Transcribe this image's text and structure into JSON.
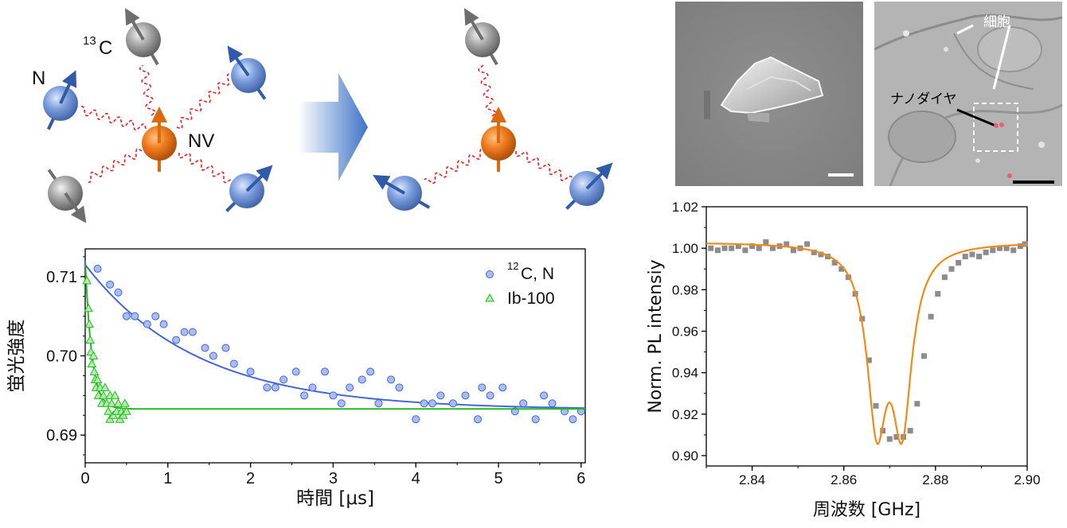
{
  "schematic": {
    "label_n": "N",
    "label_c13_sup": "13",
    "label_c13": "C",
    "label_nv": "NV",
    "colors": {
      "nv_spin": "#f07c1e",
      "nitrogen_spin": "#6f95d9",
      "carbon13_spin": "#9a9a9a",
      "coupling_line": "#e8202a",
      "arrow": "#3f74c8"
    },
    "icons": [
      "nv-spin-icon",
      "nitrogen-spin-icon",
      "carbon13-spin-icon",
      "transition-arrow-icon"
    ]
  },
  "images": {
    "sem": {
      "icon": "nanodiamond-sem-image"
    },
    "cell": {
      "label_cell": "細胞",
      "label_nanodiamond": "ナノダイヤ",
      "icon": "cell-microscope-image"
    }
  },
  "chart_data": [
    {
      "type": "scatter",
      "ylabel": "蛍光強度",
      "xlabel": "時間 [μs]",
      "xlim": [
        0,
        6.05
      ],
      "ylim": [
        0.6865,
        0.7135
      ],
      "xticks": [
        0,
        1,
        2,
        3,
        4,
        5,
        6
      ],
      "xtick_labels": [
        "0",
        "1",
        "2",
        "3",
        "4",
        "5",
        "6"
      ],
      "yticks": [
        0.69,
        0.7,
        0.71
      ],
      "ytick_labels": [
        "0.69",
        "0.70",
        "0.71"
      ],
      "grid": false,
      "legend_position": "top-right",
      "series": [
        {
          "name_sup": "12",
          "name": "C, N",
          "marker": "circle",
          "color": "#4466dd",
          "fill": "#a9bdf0",
          "points": [
            [
              0.15,
              0.711
            ],
            [
              0.3,
              0.709
            ],
            [
              0.4,
              0.708
            ],
            [
              0.5,
              0.705
            ],
            [
              0.6,
              0.705
            ],
            [
              0.75,
              0.704
            ],
            [
              0.85,
              0.705
            ],
            [
              0.95,
              0.704
            ],
            [
              1.1,
              0.702
            ],
            [
              1.2,
              0.703
            ],
            [
              1.3,
              0.703
            ],
            [
              1.45,
              0.701
            ],
            [
              1.55,
              0.7
            ],
            [
              1.7,
              0.701
            ],
            [
              1.8,
              0.699
            ],
            [
              2.0,
              0.698
            ],
            [
              2.2,
              0.696
            ],
            [
              2.3,
              0.696
            ],
            [
              2.4,
              0.697
            ],
            [
              2.55,
              0.698
            ],
            [
              2.65,
              0.695
            ],
            [
              2.75,
              0.696
            ],
            [
              2.9,
              0.698
            ],
            [
              3.0,
              0.695
            ],
            [
              3.1,
              0.694
            ],
            [
              3.2,
              0.696
            ],
            [
              3.35,
              0.697
            ],
            [
              3.45,
              0.698
            ],
            [
              3.55,
              0.694
            ],
            [
              3.7,
              0.697
            ],
            [
              3.8,
              0.696
            ],
            [
              4.0,
              0.692
            ],
            [
              4.1,
              0.694
            ],
            [
              4.2,
              0.694
            ],
            [
              4.3,
              0.695
            ],
            [
              4.45,
              0.694
            ],
            [
              4.6,
              0.695
            ],
            [
              4.75,
              0.692
            ],
            [
              4.8,
              0.696
            ],
            [
              4.9,
              0.695
            ],
            [
              5.05,
              0.696
            ],
            [
              5.2,
              0.693
            ],
            [
              5.3,
              0.694
            ],
            [
              5.45,
              0.692
            ],
            [
              5.55,
              0.695
            ],
            [
              5.65,
              0.694
            ],
            [
              5.8,
              0.693
            ],
            [
              5.9,
              0.692
            ],
            [
              6.0,
              0.693
            ]
          ],
          "fit_curve": {
            "model": "y = a + b*exp(-x/tau)",
            "a": 0.6932,
            "b": 0.0183,
            "tau": 1.35
          }
        },
        {
          "name": "Ib-100",
          "marker": "triangle",
          "color": "#22bb22",
          "fill": "#b6ecab",
          "points": [
            [
              0.02,
              0.7095
            ],
            [
              0.04,
              0.706
            ],
            [
              0.05,
              0.704
            ],
            [
              0.06,
              0.702
            ],
            [
              0.07,
              0.7005
            ],
            [
              0.08,
              0.699
            ],
            [
              0.1,
              0.7
            ],
            [
              0.11,
              0.698
            ],
            [
              0.12,
              0.697
            ],
            [
              0.13,
              0.696
            ],
            [
              0.15,
              0.697
            ],
            [
              0.16,
              0.695
            ],
            [
              0.18,
              0.696
            ],
            [
              0.2,
              0.694
            ],
            [
              0.22,
              0.695
            ],
            [
              0.24,
              0.696
            ],
            [
              0.26,
              0.694
            ],
            [
              0.28,
              0.693
            ],
            [
              0.3,
              0.695
            ],
            [
              0.3,
              0.692
            ],
            [
              0.32,
              0.694
            ],
            [
              0.34,
              0.6925
            ],
            [
              0.36,
              0.695
            ],
            [
              0.38,
              0.693
            ],
            [
              0.4,
              0.694
            ],
            [
              0.42,
              0.692
            ],
            [
              0.44,
              0.693
            ],
            [
              0.46,
              0.6925
            ],
            [
              0.48,
              0.694
            ],
            [
              0.5,
              0.693
            ]
          ],
          "fit_curve": {
            "model": "y = a + b*exp(-x/tau)",
            "a": 0.6933,
            "b": 0.0187,
            "tau": 0.08
          }
        }
      ]
    },
    {
      "type": "scatter",
      "ylabel": "Norm. PL intensiy",
      "xlabel": "周波数 [GHz]",
      "xlim": [
        2.83,
        2.9
      ],
      "ylim": [
        0.895,
        1.02
      ],
      "xticks": [
        2.84,
        2.86,
        2.88,
        2.9
      ],
      "xtick_labels": [
        "2.84",
        "2.86",
        "2.88",
        "2.90"
      ],
      "yticks": [
        0.9,
        0.92,
        0.94,
        0.96,
        0.98,
        1.0,
        1.02
      ],
      "ytick_labels": [
        "0.90",
        "0.92",
        "0.94",
        "0.96",
        "0.98",
        "1.00",
        "1.02"
      ],
      "grid": false,
      "series": [
        {
          "marker": "square",
          "color": "#8c8c8c",
          "points": [
            [
              2.831,
              1.0
            ],
            [
              2.8325,
              0.999
            ],
            [
              2.834,
              1.0
            ],
            [
              2.8355,
              1.0
            ],
            [
              2.837,
              1.001
            ],
            [
              2.8385,
              0.999
            ],
            [
              2.84,
              1.001
            ],
            [
              2.8415,
              1.0
            ],
            [
              2.843,
              1.003
            ],
            [
              2.8445,
              1.0
            ],
            [
              2.846,
              1.001
            ],
            [
              2.8475,
              1.002
            ],
            [
              2.849,
              0.999
            ],
            [
              2.8505,
              1.0
            ],
            [
              2.852,
              1.002
            ],
            [
              2.8535,
              0.998
            ],
            [
              2.855,
              0.997
            ],
            [
              2.8565,
              0.996
            ],
            [
              2.858,
              0.993
            ],
            [
              2.8595,
              0.99
            ],
            [
              2.861,
              0.986
            ],
            [
              2.8625,
              0.978
            ],
            [
              2.864,
              0.966
            ],
            [
              2.8655,
              0.946
            ],
            [
              2.867,
              0.924
            ],
            [
              2.8685,
              0.912
            ],
            [
              2.87,
              0.908
            ],
            [
              2.8715,
              0.909
            ],
            [
              2.873,
              0.909
            ],
            [
              2.8745,
              0.912
            ],
            [
              2.876,
              0.925
            ],
            [
              2.8775,
              0.948
            ],
            [
              2.879,
              0.967
            ],
            [
              2.8805,
              0.978
            ],
            [
              2.882,
              0.986
            ],
            [
              2.8835,
              0.99
            ],
            [
              2.885,
              0.993
            ],
            [
              2.8865,
              0.996
            ],
            [
              2.888,
              0.997
            ],
            [
              2.8895,
              0.996
            ],
            [
              2.891,
              0.998
            ],
            [
              2.8925,
              0.999
            ],
            [
              2.894,
              1.0
            ],
            [
              2.8955,
              1.0
            ],
            [
              2.897,
              0.999
            ],
            [
              2.8985,
              1.001
            ],
            [
              2.8995,
              1.002
            ]
          ]
        },
        {
          "type": "line",
          "color": "#f28a18",
          "fit_curve": {
            "model": "two-lorentzian dip",
            "baseline": 1.003,
            "centers": [
              2.8672,
              2.8727
            ],
            "width": 0.0052,
            "depth": 0.082
          }
        }
      ]
    }
  ]
}
